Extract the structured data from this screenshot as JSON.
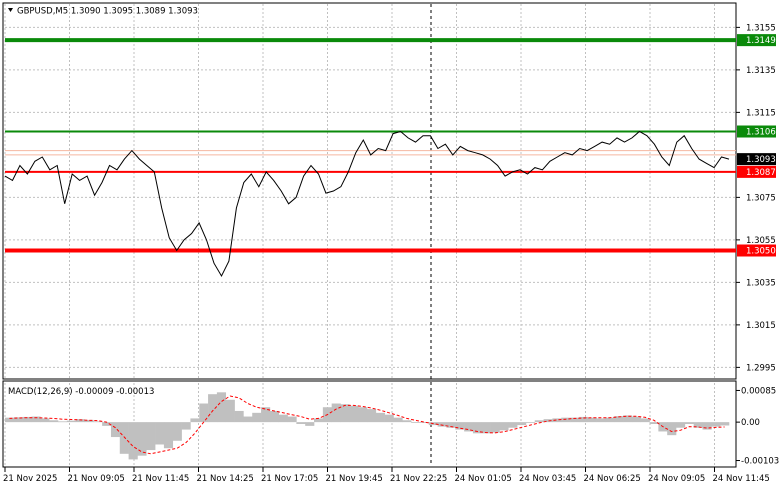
{
  "header": {
    "symbol_line": "GBPUSD,M5  1.3090 1.3095 1.3089 1.3093",
    "macd_line": "MACD(12,26,9) -0.00009 -0.00013"
  },
  "colors": {
    "background": "#ffffff",
    "grid": "#c0c0c0",
    "price": "#000000",
    "resistance": "#0a8a0a",
    "support": "#ff0000",
    "histogram": "#c0c0c0",
    "signal": "#ff0000",
    "current_price_box": "#000000"
  },
  "chart_data": [
    {
      "type": "line",
      "series": [
        {
          "values": [
            1.3085,
            1.3083,
            1.309,
            1.3086,
            1.3092,
            1.3094,
            1.3088,
            1.309,
            1.3072,
            1.3086,
            1.3083,
            1.3085,
            1.3076,
            1.3082,
            1.309,
            1.3088,
            1.3093,
            1.3097,
            1.3093,
            1.309,
            1.3087,
            1.307,
            1.3056,
            1.305,
            1.3055,
            1.3058,
            1.3063,
            1.3055,
            1.3044,
            1.3038,
            1.3045,
            1.307,
            1.3082,
            1.3086,
            1.308,
            1.3087,
            1.3083,
            1.3078,
            1.3072,
            1.3075,
            1.3085,
            1.309,
            1.3086,
            1.3077,
            1.3078,
            1.308,
            1.3087,
            1.3096,
            1.3102,
            1.3095,
            1.3098,
            1.3097,
            1.3105,
            1.3106,
            1.3103,
            1.3101,
            1.3104,
            1.3104,
            1.3098,
            1.31,
            1.3095,
            1.3099,
            1.3097,
            1.3096,
            1.3095,
            1.3093,
            1.309,
            1.3085,
            1.3087,
            1.3088,
            1.3086,
            1.3089,
            1.3088,
            1.3092,
            1.3094,
            1.3096,
            1.3095,
            1.3098,
            1.3097,
            1.3099,
            1.3101,
            1.31,
            1.3103,
            1.3101,
            1.3103,
            1.3106,
            1.3104,
            1.31,
            1.3094,
            1.309,
            1.3101,
            1.3104,
            1.3098,
            1.3093,
            1.3091,
            1.3089,
            1.3094,
            1.3093
          ]
        }
      ],
      "y_ticks": [
        "1.3155",
        "1.3135",
        "1.3115",
        "1.3075",
        "1.3055",
        "1.3035",
        "1.3015",
        "1.2995"
      ],
      "ylim": [
        1.299,
        1.3166
      ],
      "levels": [
        {
          "label": "1.3149",
          "value": 1.3149,
          "kind": "resistance"
        },
        {
          "label": "1.3106",
          "value": 1.3106,
          "kind": "resistance"
        },
        {
          "label": "1.3087",
          "value": 1.3087,
          "kind": "support"
        },
        {
          "label": "1.3050",
          "value": 1.305,
          "kind": "support"
        }
      ],
      "current_price": {
        "label": "1.3093",
        "value": 1.3093
      },
      "bid_ask_lines": [
        1.3097,
        1.3095
      ],
      "vertical_marker_category": "21 Nov 22:25",
      "grid": true
    },
    {
      "type": "bar",
      "name": "MACD(12,26,9)",
      "values": [
        0.00012,
        0.00013,
        0.00014,
        0.00015,
        0.0001,
        5e-05,
        2e-05,
        4e-05,
        8e-05,
        6e-05,
        2e-05,
        -0.0001,
        -0.0004,
        -0.00085,
        -0.001,
        -0.0009,
        -0.00075,
        -0.0006,
        -0.0007,
        -0.0005,
        -0.0002,
        0.0001,
        0.0005,
        0.00075,
        0.0008,
        0.0006,
        0.0003,
        0.00015,
        0.00025,
        0.0004,
        0.0003,
        0.0002,
        0.00015,
        -5e-05,
        -0.0001,
        0.0001,
        0.0004,
        0.0005,
        0.00048,
        0.00044,
        0.0004,
        0.00035,
        0.00025,
        0.0002,
        0.00012,
        5e-05,
        0.0,
        -2e-05,
        -8e-05,
        -0.00012,
        -0.00015,
        -0.0002,
        -0.00025,
        -0.0003,
        -0.0003,
        -0.00028,
        -0.00022,
        -0.00015,
        -8e-05,
        0.0,
        5e-05,
        8e-05,
        0.0001,
        0.00012,
        0.00012,
        0.00014,
        0.00012,
        0.0001,
        0.00012,
        0.00016,
        0.00018,
        0.00015,
        0.0001,
        -5e-05,
        -0.00025,
        -0.00035,
        -0.00015,
        -5e-05,
        -0.00015,
        -0.0002,
        -0.00012,
        -9e-05
      ],
      "signal": [
        0.0001,
        0.00011,
        0.00012,
        0.00012,
        0.00011,
        0.0001,
        8e-05,
        7e-05,
        6e-05,
        5e-05,
        4e-05,
        0.0,
        -0.00015,
        -0.0004,
        -0.00065,
        -0.0008,
        -0.00085,
        -0.0008,
        -0.00075,
        -0.0007,
        -0.00055,
        -0.0003,
        0.0,
        0.0003,
        0.00055,
        0.0007,
        0.00065,
        0.0005,
        0.0004,
        0.00035,
        0.0003,
        0.00025,
        0.0002,
        0.00015,
        8e-05,
        0.0001,
        0.0002,
        0.00035,
        0.00045,
        0.00045,
        0.00042,
        0.00038,
        0.00032,
        0.00025,
        0.00018,
        0.0001,
        5e-05,
        0.0,
        -4e-05,
        -8e-05,
        -0.00012,
        -0.00016,
        -0.0002,
        -0.00025,
        -0.00028,
        -0.00029,
        -0.00026,
        -0.0002,
        -0.00014,
        -8e-05,
        -2e-05,
        3e-05,
        6e-05,
        8e-05,
        0.0001,
        0.00011,
        0.00012,
        0.00012,
        0.00012,
        0.00014,
        0.00016,
        0.00016,
        0.00013,
        5e-05,
        -0.00012,
        -0.00025,
        -0.00022,
        -0.00012,
        -0.00013,
        -0.00016,
        -0.00014,
        -0.00013
      ],
      "y_ticks": [
        "0.00085",
        "0.00",
        "-0.00103"
      ],
      "ylim": [
        -0.00115,
        0.00105
      ]
    }
  ],
  "x_axis": {
    "labels": [
      "21 Nov 2025",
      "21 Nov 09:05",
      "21 Nov 11:45",
      "21 Nov 14:25",
      "21 Nov 17:05",
      "21 Nov 19:45",
      "21 Nov 22:25",
      "24 Nov 01:05",
      "24 Nov 03:45",
      "24 Nov 06:25",
      "24 Nov 09:05",
      "24 Nov 11:45"
    ]
  }
}
